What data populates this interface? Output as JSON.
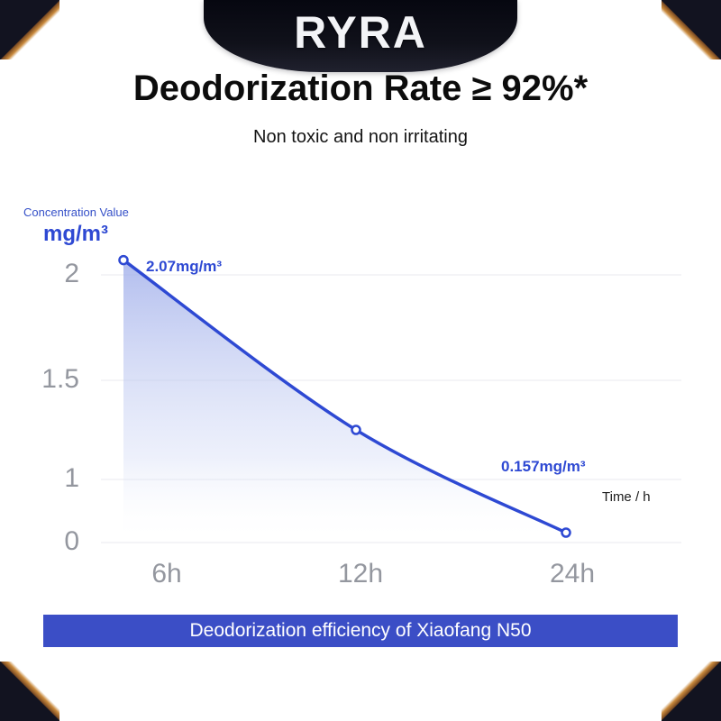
{
  "brand": {
    "logo": "RYRA"
  },
  "header": {
    "title": "Deodorization Rate ≥ 92%*",
    "subtitle": "Non toxic and non irritating"
  },
  "chart": {
    "axis_label_top": "Concentration Value",
    "axis_label_unit": "mg/m³",
    "y_ticks": [
      "2",
      "1.5",
      "1",
      "0"
    ],
    "x_ticks": [
      "6h",
      "12h",
      "24h"
    ],
    "time_label": "Time / h",
    "start_label": "2.07mg/m³",
    "end_label": "0.157mg/m³",
    "accent_color": "#2e49d3",
    "tick_color": "#94979f",
    "grid_color": "#e8eaef"
  },
  "chart_data": {
    "type": "line",
    "x": [
      "6h",
      "12h",
      "24h"
    ],
    "series": [
      {
        "name": "Concentration (mg/m³)",
        "values": [
          2.07,
          1.25,
          0.157
        ]
      }
    ],
    "title": "Deodorization efficiency of Xiaofang N50",
    "xlabel": "Time / h",
    "ylabel": "Concentration Value mg/m³",
    "ylim": [
      0,
      2.2
    ],
    "y_ticks": [
      0,
      1,
      1.5,
      2
    ],
    "annotations": [
      {
        "point": "6h",
        "label": "2.07mg/m³"
      },
      {
        "point": "24h",
        "label": "0.157mg/m³"
      }
    ],
    "grid": true,
    "legend": false,
    "area_fill": true
  },
  "footer": {
    "caption": "Deodorization efficiency of Xiaofang N50",
    "bg_color": "#3b4ec6"
  }
}
